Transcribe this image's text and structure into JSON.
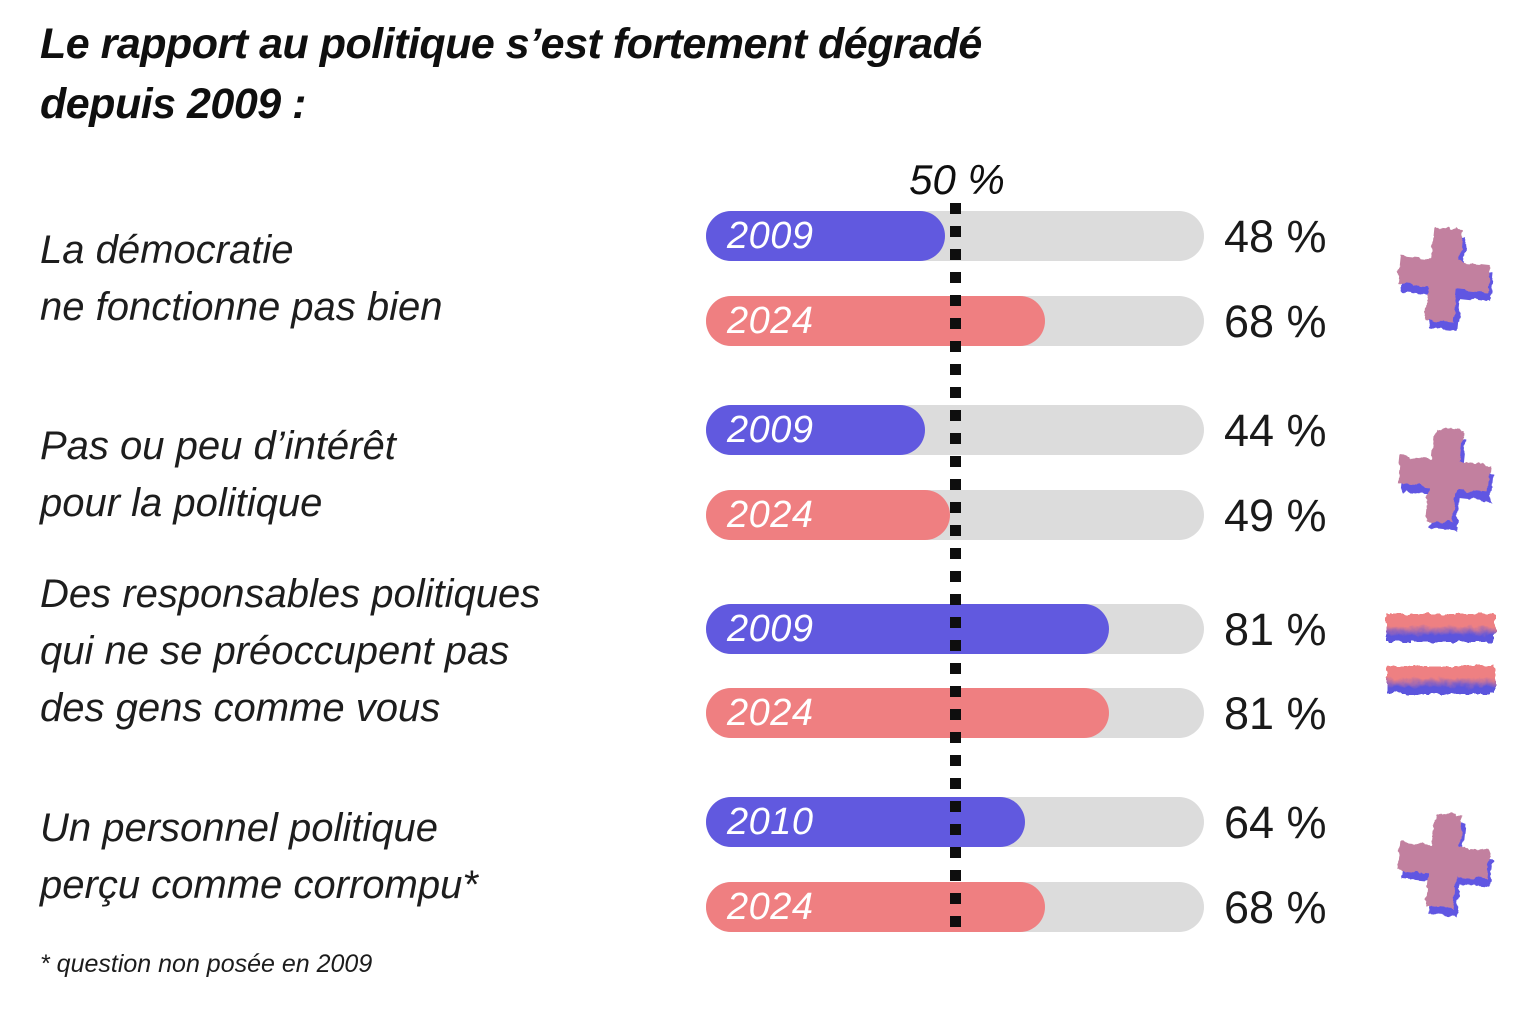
{
  "title": {
    "line1": "Le rapport au politique s’est fortement dégradé",
    "line2": "depuis 2009 :"
  },
  "footnote": "* question non posée en 2009",
  "colors": {
    "early": "#6159df",
    "late": "#ef7f81",
    "track": "#dcdcdc",
    "icon_front": "#c2809f",
    "icon_shadow": "#6157e2",
    "equals_top": "#ee8082",
    "equals_bottom": "#5b54dd",
    "text": "#1a1a1a"
  },
  "chart_data": {
    "type": "bar",
    "orientation": "horizontal",
    "unit": "%",
    "xlim": [
      0,
      100
    ],
    "title": "Le rapport au politique s’est fortement dégradé depuis 2009 :",
    "reference_line": {
      "label": "50 %",
      "value": 50,
      "style": "dotted-vertical"
    },
    "footnote": "* question non posée en 2009",
    "groups": [
      {
        "label_lines": [
          "La démocratie",
          "ne fonctionne pas bien"
        ],
        "trend_icon": "plus",
        "bars": [
          {
            "year": "2009",
            "value": 48,
            "display": "48 %",
            "color_key": "early"
          },
          {
            "year": "2024",
            "value": 68,
            "display": "68 %",
            "color_key": "late"
          }
        ]
      },
      {
        "label_lines": [
          "Pas ou peu d’intérêt",
          "pour la politique"
        ],
        "trend_icon": "plus",
        "bars": [
          {
            "year": "2009",
            "value": 44,
            "display": "44 %",
            "color_key": "early"
          },
          {
            "year": "2024",
            "value": 49,
            "display": "49 %",
            "color_key": "late"
          }
        ]
      },
      {
        "label_lines": [
          "Des responsables politiques",
          "qui ne se préoccupent pas",
          "des gens comme vous"
        ],
        "trend_icon": "equals",
        "bars": [
          {
            "year": "2009",
            "value": 81,
            "display": "81 %",
            "color_key": "early"
          },
          {
            "year": "2024",
            "value": 81,
            "display": "81 %",
            "color_key": "late"
          }
        ]
      },
      {
        "label_lines": [
          "Un personnel politique",
          "perçu comme corrompu*"
        ],
        "trend_icon": "plus",
        "bars": [
          {
            "year": "2010",
            "value": 64,
            "display": "64 %",
            "color_key": "early"
          },
          {
            "year": "2024",
            "value": 68,
            "display": "68 %",
            "color_key": "late"
          }
        ]
      }
    ]
  }
}
